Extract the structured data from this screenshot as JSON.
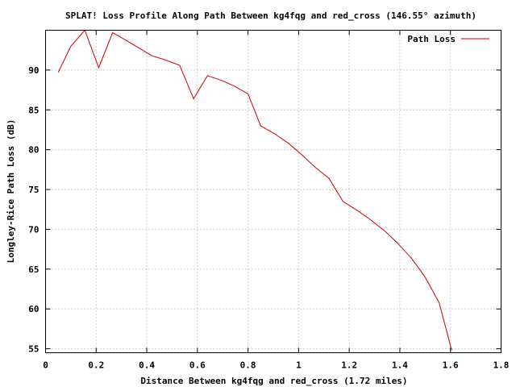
{
  "chart_data": {
    "type": "line",
    "title": "SPLAT! Loss Profile Along Path Between kg4fqg and red_cross (146.55° azimuth)",
    "xlabel": "Distance Between kg4fqg and red_cross (1.72 miles)",
    "ylabel": "Longley-Rice Path Loss (dB)",
    "xlim": [
      0,
      1.8
    ],
    "ylim": [
      54.5,
      95
    ],
    "x_ticks": [
      "0",
      "0.2",
      "0.4",
      "0.6",
      "0.8",
      "1",
      "1.2",
      "1.4",
      "1.6",
      "1.8"
    ],
    "y_ticks": [
      "55",
      "60",
      "65",
      "70",
      "75",
      "80",
      "85",
      "90"
    ],
    "grid": true,
    "legend_position": "top-right",
    "series": [
      {
        "name": "Path Loss",
        "color": "#cc0000",
        "x": [
          0.05,
          0.1,
          0.155,
          0.21,
          0.265,
          0.32,
          0.42,
          0.47,
          0.53,
          0.585,
          0.64,
          0.695,
          0.745,
          0.8,
          0.85,
          0.905,
          0.96,
          1.015,
          1.065,
          1.12,
          1.175,
          1.23,
          1.28,
          1.34,
          1.39,
          1.445,
          1.5,
          1.555,
          1.605
        ],
        "y": [
          89.7,
          93.0,
          95.0,
          90.3,
          94.7,
          93.7,
          91.8,
          91.3,
          90.6,
          86.4,
          89.3,
          88.7,
          88.0,
          87.0,
          83.0,
          82.0,
          80.8,
          79.3,
          77.8,
          76.4,
          73.5,
          72.4,
          71.3,
          69.8,
          68.3,
          66.4,
          64.0,
          60.8,
          54.8
        ]
      }
    ]
  }
}
